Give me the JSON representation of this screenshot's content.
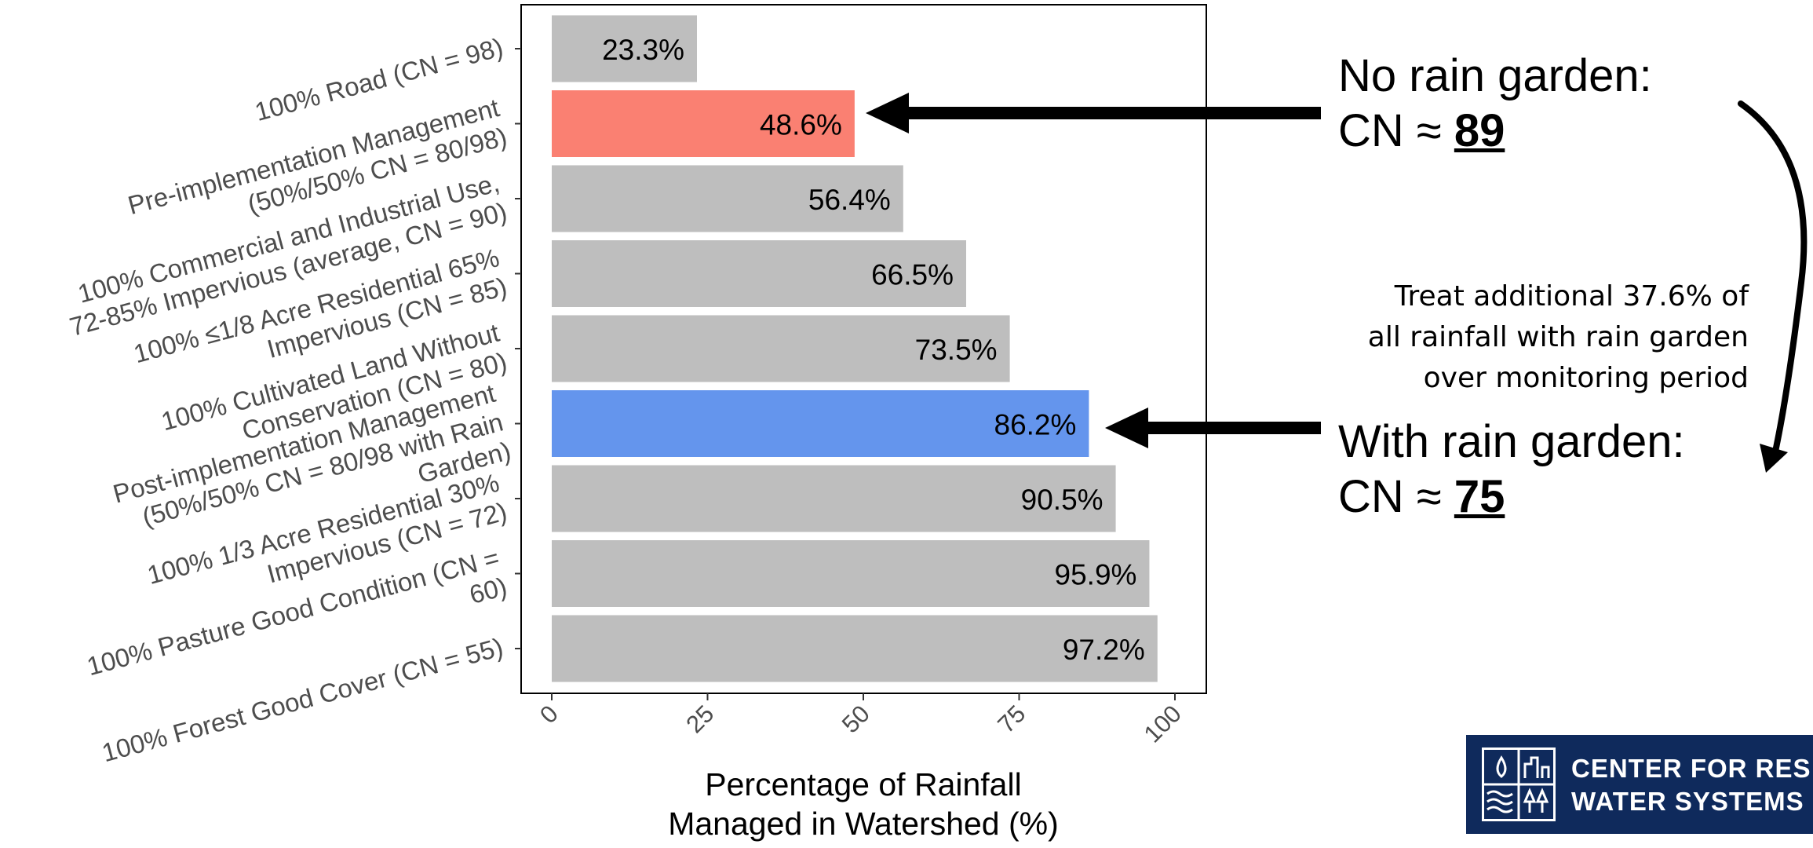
{
  "chart_data": {
    "type": "bar",
    "orientation": "horizontal",
    "categories": [
      [
        "100% Road (CN = 98)"
      ],
      [
        "Pre-implementation Management",
        "(50%/50% CN = 80/98)"
      ],
      [
        "100% Commercial and Industrial Use,",
        "72-85% Impervious (average, CN = 90)"
      ],
      [
        "100% ≤1/8 Acre Residential 65%",
        "Impervious (CN = 85)"
      ],
      [
        "100% Cultivated Land Without",
        "Conservation (CN = 80)"
      ],
      [
        "Post-implementation Management",
        "(50%/50% CN = 80/98 with Rain",
        "Garden)"
      ],
      [
        "100% 1/3 Acre Residential 30%",
        "Impervious (CN = 72)"
      ],
      [
        "100% Pasture Good Condition (CN =",
        "60)"
      ],
      [
        "100% Forest Good Cover (CN = 55)"
      ]
    ],
    "values": [
      23.3,
      48.6,
      56.4,
      66.5,
      73.5,
      86.2,
      90.5,
      95.9,
      97.2
    ],
    "value_labels": [
      "23.3%",
      "48.6%",
      "56.4%",
      "66.5%",
      "73.5%",
      "86.2%",
      "90.5%",
      "95.9%",
      "97.2%"
    ],
    "bar_colors": [
      "#bebebe",
      "#fa8072",
      "#bebebe",
      "#bebebe",
      "#bebebe",
      "#6495ed",
      "#bebebe",
      "#bebebe",
      "#bebebe"
    ],
    "xlabel": [
      "Percentage of Rainfall",
      "Managed in Watershed (%)"
    ],
    "xlim": [
      0,
      100
    ],
    "xticks": [
      "0",
      "25",
      "50",
      "75",
      "100"
    ],
    "xtick_values": [
      0,
      25,
      50,
      75,
      100
    ],
    "grid": false
  },
  "annotations": {
    "no_garden_label": "No rain garden:",
    "no_garden_cn_prefix": "CN ≈ ",
    "no_garden_cn": "89",
    "note": [
      "Treat additional 37.6% of",
      "all rainfall with rain garden",
      "over monitoring period"
    ],
    "with_garden_label": "With rain garden:",
    "with_garden_cn_prefix": "CN ≈ ",
    "with_garden_cn": "75"
  },
  "logo": {
    "line1": "CENTER FOR RES",
    "line2": "WATER SYSTEMS"
  }
}
